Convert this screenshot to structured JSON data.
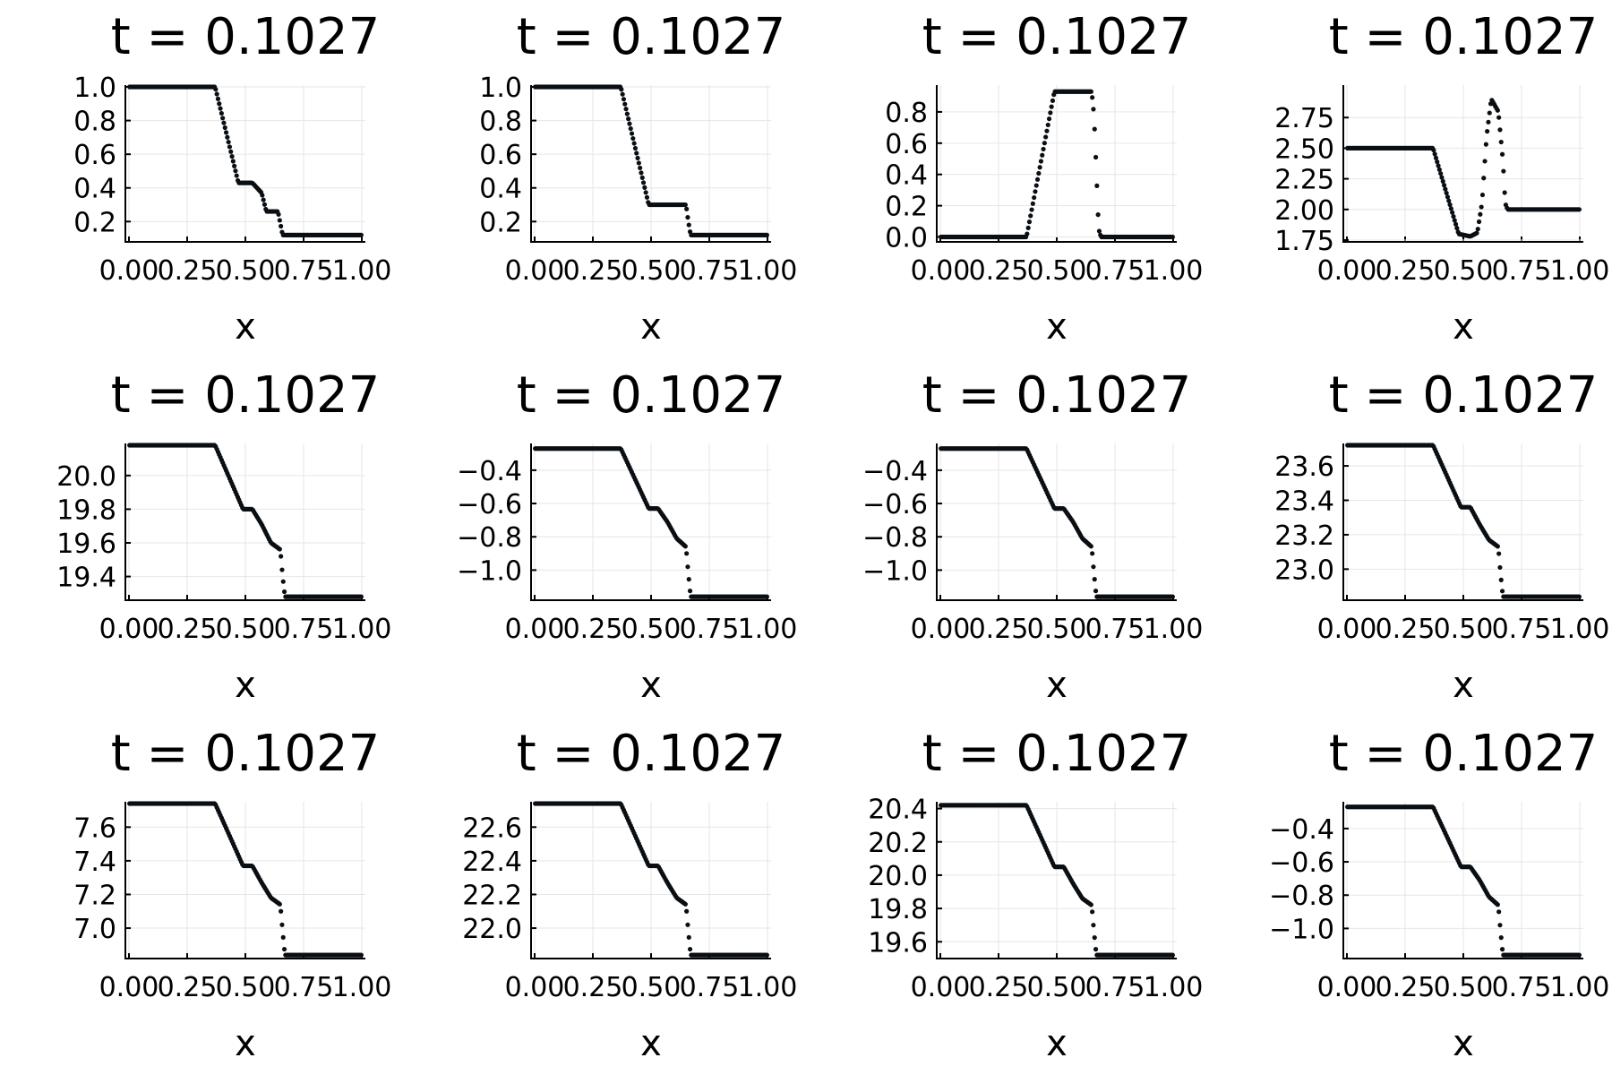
{
  "chart_data": [
    {
      "type": "scatter",
      "title": "t = 0.1027",
      "xlabel": "x",
      "ylabel": "",
      "xlim": [
        0,
        1
      ],
      "ylim": [
        0.09,
        1.0
      ],
      "grid": true,
      "xticks": [
        "0.00",
        "0.25",
        "0.50",
        "0.75",
        "1.00"
      ],
      "yticks": [
        "0.2",
        "0.4",
        "0.6",
        "0.8",
        "1.0"
      ],
      "profile": [
        [
          0,
          1.0
        ],
        [
          0.37,
          1.0
        ],
        [
          0.47,
          0.43
        ],
        [
          0.51,
          0.43
        ],
        [
          0.53,
          0.43
        ],
        [
          0.57,
          0.37
        ],
        [
          0.59,
          0.26
        ],
        [
          0.64,
          0.26
        ],
        [
          0.66,
          0.12
        ],
        [
          1.0,
          0.12
        ]
      ]
    },
    {
      "type": "scatter",
      "title": "t = 0.1027",
      "xlabel": "x",
      "ylabel": "",
      "xlim": [
        0,
        1
      ],
      "ylim": [
        0.09,
        1.0
      ],
      "grid": true,
      "xticks": [
        "0.00",
        "0.25",
        "0.50",
        "0.75",
        "1.00"
      ],
      "yticks": [
        "0.2",
        "0.4",
        "0.6",
        "0.8",
        "1.0"
      ],
      "profile": [
        [
          0,
          1.0
        ],
        [
          0.37,
          1.0
        ],
        [
          0.49,
          0.3
        ],
        [
          0.65,
          0.3
        ],
        [
          0.66,
          0.2
        ],
        [
          0.67,
          0.12
        ],
        [
          1.0,
          0.12
        ]
      ]
    },
    {
      "type": "scatter",
      "title": "t = 0.1027",
      "xlabel": "x",
      "ylabel": "",
      "xlim": [
        0,
        1
      ],
      "ylim": [
        -0.02,
        0.96
      ],
      "grid": true,
      "xticks": [
        "0.00",
        "0.25",
        "0.50",
        "0.75",
        "1.00"
      ],
      "yticks": [
        "0.0",
        "0.2",
        "0.4",
        "0.6",
        "0.8"
      ],
      "profile": [
        [
          0,
          0.0
        ],
        [
          0.37,
          0.0
        ],
        [
          0.49,
          0.93
        ],
        [
          0.65,
          0.93
        ],
        [
          0.66,
          0.78
        ],
        [
          0.67,
          0.42
        ],
        [
          0.68,
          0.05
        ],
        [
          0.69,
          0.0
        ],
        [
          1.0,
          0.0
        ]
      ]
    },
    {
      "type": "scatter",
      "title": "t = 0.1027",
      "xlabel": "x",
      "ylabel": "",
      "xlim": [
        0,
        1
      ],
      "ylim": [
        1.75,
        3.0
      ],
      "grid": true,
      "xticks": [
        "0.00",
        "0.25",
        "0.50",
        "0.75",
        "1.00"
      ],
      "yticks": [
        "1.75",
        "2.00",
        "2.25",
        "2.50",
        "2.75"
      ],
      "profile": [
        [
          0,
          2.5
        ],
        [
          0.37,
          2.5
        ],
        [
          0.48,
          1.8
        ],
        [
          0.53,
          1.78
        ],
        [
          0.56,
          1.81
        ],
        [
          0.58,
          2.05
        ],
        [
          0.6,
          2.6
        ],
        [
          0.62,
          2.9
        ],
        [
          0.65,
          2.8
        ],
        [
          0.67,
          2.4
        ],
        [
          0.68,
          2.05
        ],
        [
          0.69,
          2.0
        ],
        [
          1.0,
          2.0
        ]
      ]
    },
    {
      "type": "scatter",
      "title": "t = 0.1027",
      "xlabel": "x",
      "ylabel": "",
      "xlim": [
        0,
        1
      ],
      "ylim": [
        19.27,
        20.18
      ],
      "grid": true,
      "xticks": [
        "0.00",
        "0.25",
        "0.50",
        "0.75",
        "1.00"
      ],
      "yticks": [
        "19.4",
        "19.6",
        "19.8",
        "20.0"
      ],
      "profile": [
        [
          0,
          20.18
        ],
        [
          0.37,
          20.18
        ],
        [
          0.49,
          19.8
        ],
        [
          0.53,
          19.8
        ],
        [
          0.57,
          19.71
        ],
        [
          0.61,
          19.6
        ],
        [
          0.65,
          19.56
        ],
        [
          0.66,
          19.4
        ],
        [
          0.67,
          19.28
        ],
        [
          1.0,
          19.28
        ]
      ]
    },
    {
      "type": "scatter",
      "title": "t = 0.1027",
      "xlabel": "x",
      "ylabel": "",
      "xlim": [
        0,
        1
      ],
      "ylim": [
        -1.17,
        -0.25
      ],
      "grid": true,
      "xticks": [
        "0.00",
        "0.25",
        "0.50",
        "0.75",
        "1.00"
      ],
      "yticks": [
        "-0.4",
        "-0.6",
        "-0.8",
        "-1.0"
      ],
      "profile": [
        [
          0,
          -0.27
        ],
        [
          0.37,
          -0.27
        ],
        [
          0.49,
          -0.63
        ],
        [
          0.53,
          -0.63
        ],
        [
          0.57,
          -0.71
        ],
        [
          0.61,
          -0.81
        ],
        [
          0.65,
          -0.86
        ],
        [
          0.66,
          -1.02
        ],
        [
          0.67,
          -1.16
        ],
        [
          1.0,
          -1.16
        ]
      ]
    },
    {
      "type": "scatter",
      "title": "t = 0.1027",
      "xlabel": "x",
      "ylabel": "",
      "xlim": [
        0,
        1
      ],
      "ylim": [
        -1.17,
        -0.25
      ],
      "grid": true,
      "xticks": [
        "0.00",
        "0.25",
        "0.50",
        "0.75",
        "1.00"
      ],
      "yticks": [
        "-0.4",
        "-0.6",
        "-0.8",
        "-1.0"
      ],
      "profile": [
        [
          0,
          -0.27
        ],
        [
          0.37,
          -0.27
        ],
        [
          0.49,
          -0.63
        ],
        [
          0.53,
          -0.63
        ],
        [
          0.57,
          -0.71
        ],
        [
          0.61,
          -0.81
        ],
        [
          0.65,
          -0.86
        ],
        [
          0.66,
          -1.02
        ],
        [
          0.67,
          -1.16
        ],
        [
          1.0,
          -1.16
        ]
      ]
    },
    {
      "type": "scatter",
      "title": "t = 0.1027",
      "xlabel": "x",
      "ylabel": "",
      "xlim": [
        0,
        1
      ],
      "ylim": [
        22.83,
        23.72
      ],
      "grid": true,
      "xticks": [
        "0.00",
        "0.25",
        "0.50",
        "0.75",
        "1.00"
      ],
      "yticks": [
        "23.0",
        "23.2",
        "23.4",
        "23.6"
      ],
      "profile": [
        [
          0,
          23.72
        ],
        [
          0.37,
          23.72
        ],
        [
          0.49,
          23.36
        ],
        [
          0.53,
          23.36
        ],
        [
          0.57,
          23.26
        ],
        [
          0.61,
          23.17
        ],
        [
          0.65,
          23.13
        ],
        [
          0.66,
          22.97
        ],
        [
          0.67,
          22.84
        ],
        [
          1.0,
          22.84
        ]
      ]
    },
    {
      "type": "scatter",
      "title": "t = 0.1027",
      "xlabel": "x",
      "ylabel": "",
      "xlim": [
        0,
        1
      ],
      "ylim": [
        6.83,
        7.74
      ],
      "grid": true,
      "xticks": [
        "0.00",
        "0.25",
        "0.50",
        "0.75",
        "1.00"
      ],
      "yticks": [
        "7.0",
        "7.2",
        "7.4",
        "7.6"
      ],
      "profile": [
        [
          0,
          7.74
        ],
        [
          0.37,
          7.74
        ],
        [
          0.49,
          7.37
        ],
        [
          0.53,
          7.37
        ],
        [
          0.57,
          7.27
        ],
        [
          0.61,
          7.18
        ],
        [
          0.65,
          7.14
        ],
        [
          0.66,
          6.98
        ],
        [
          0.67,
          6.84
        ],
        [
          1.0,
          6.84
        ]
      ]
    },
    {
      "type": "scatter",
      "title": "t = 0.1027",
      "xlabel": "x",
      "ylabel": "",
      "xlim": [
        0,
        1
      ],
      "ylim": [
        21.83,
        22.74
      ],
      "grid": true,
      "xticks": [
        "0.00",
        "0.25",
        "0.50",
        "0.75",
        "1.00"
      ],
      "yticks": [
        "22.0",
        "22.2",
        "22.4",
        "22.6"
      ],
      "profile": [
        [
          0,
          22.74
        ],
        [
          0.37,
          22.74
        ],
        [
          0.49,
          22.37
        ],
        [
          0.53,
          22.37
        ],
        [
          0.57,
          22.27
        ],
        [
          0.61,
          22.18
        ],
        [
          0.65,
          22.14
        ],
        [
          0.66,
          21.98
        ],
        [
          0.67,
          21.84
        ],
        [
          1.0,
          21.84
        ]
      ]
    },
    {
      "type": "scatter",
      "title": "t = 0.1027",
      "xlabel": "x",
      "ylabel": "",
      "xlim": [
        0,
        1
      ],
      "ylim": [
        19.51,
        20.43
      ],
      "grid": true,
      "xticks": [
        "0.00",
        "0.25",
        "0.50",
        "0.75",
        "1.00"
      ],
      "yticks": [
        "19.6",
        "19.8",
        "20.0",
        "20.2",
        "20.4"
      ],
      "profile": [
        [
          0,
          20.42
        ],
        [
          0.37,
          20.42
        ],
        [
          0.49,
          20.05
        ],
        [
          0.53,
          20.05
        ],
        [
          0.57,
          19.95
        ],
        [
          0.61,
          19.86
        ],
        [
          0.65,
          19.82
        ],
        [
          0.66,
          19.66
        ],
        [
          0.67,
          19.52
        ],
        [
          1.0,
          19.52
        ]
      ]
    },
    {
      "type": "scatter",
      "title": "t = 0.1027",
      "xlabel": "x",
      "ylabel": "",
      "xlim": [
        0,
        1
      ],
      "ylim": [
        -1.17,
        -0.25
      ],
      "grid": true,
      "xticks": [
        "0.00",
        "0.25",
        "0.50",
        "0.75",
        "1.00"
      ],
      "yticks": [
        "-0.4",
        "-0.6",
        "-0.8",
        "-1.0"
      ],
      "profile": [
        [
          0,
          -0.27
        ],
        [
          0.37,
          -0.27
        ],
        [
          0.49,
          -0.63
        ],
        [
          0.53,
          -0.63
        ],
        [
          0.57,
          -0.71
        ],
        [
          0.61,
          -0.81
        ],
        [
          0.65,
          -0.86
        ],
        [
          0.66,
          -1.02
        ],
        [
          0.67,
          -1.16
        ],
        [
          1.0,
          -1.16
        ]
      ]
    }
  ]
}
